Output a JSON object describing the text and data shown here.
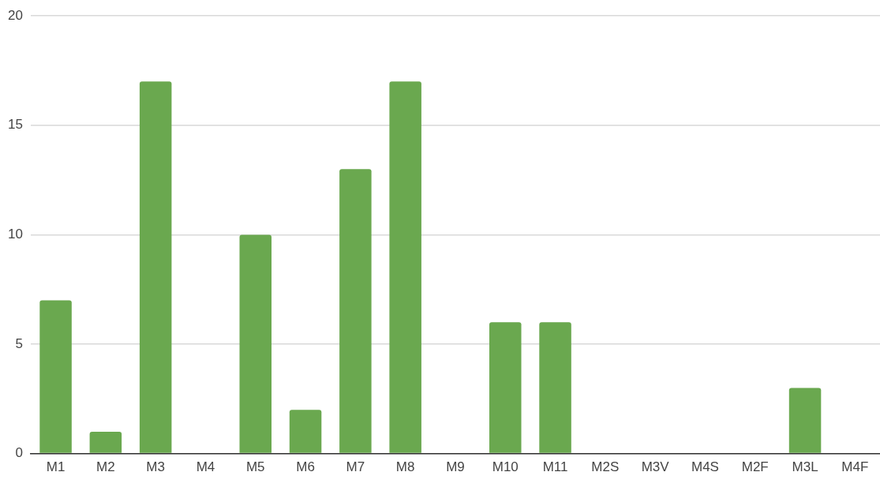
{
  "chart_data": {
    "type": "bar",
    "categories": [
      "M1",
      "M2",
      "M3",
      "M4",
      "M5",
      "M6",
      "M7",
      "M8",
      "M9",
      "M10",
      "M11",
      "M2S",
      "M3V",
      "M4S",
      "M2F",
      "M3L",
      "M4F"
    ],
    "values": [
      7,
      1,
      17,
      0,
      10,
      2,
      13,
      17,
      0,
      6,
      6,
      0,
      0,
      0,
      0,
      3,
      0
    ],
    "color": "#6aa84f",
    "ylim": [
      0,
      20
    ],
    "yticks": [
      0,
      5,
      10,
      15,
      20
    ],
    "grid": "y",
    "legend": false
  }
}
